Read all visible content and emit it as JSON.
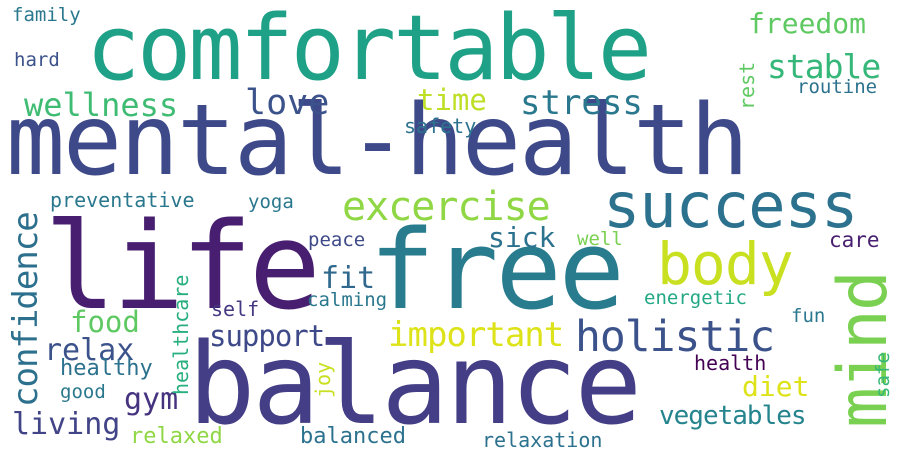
{
  "words": [
    {
      "key": "mental_health",
      "text": "mental-health",
      "color": "#3e4989"
    },
    {
      "key": "comfortable",
      "text": "comfortable",
      "color": "#1fa187"
    },
    {
      "key": "balance",
      "text": "balance",
      "color": "#433e85"
    },
    {
      "key": "life",
      "text": "life",
      "color": "#481f70"
    },
    {
      "key": "free",
      "text": "free",
      "color": "#287c8e"
    },
    {
      "key": "success",
      "text": "success",
      "color": "#2c728e"
    },
    {
      "key": "body",
      "text": "body",
      "color": "#c8e020"
    },
    {
      "key": "mind",
      "text": "mind",
      "color": "#7ad151"
    },
    {
      "key": "holistic",
      "text": "holistic",
      "color": "#3b528b"
    },
    {
      "key": "excercise",
      "text": "excercise",
      "color": "#8fd744"
    },
    {
      "key": "confidence",
      "text": "confidence",
      "color": "#2d708e"
    },
    {
      "key": "wellness",
      "text": "wellness",
      "color": "#3fbc73"
    },
    {
      "key": "stress",
      "text": "stress",
      "color": "#2a788e"
    },
    {
      "key": "love",
      "text": "love",
      "color": "#3b528b"
    },
    {
      "key": "important",
      "text": "important",
      "color": "#dde318"
    },
    {
      "key": "stable",
      "text": "stable",
      "color": "#35b779"
    },
    {
      "key": "freedom",
      "text": "freedom",
      "color": "#5ec962"
    },
    {
      "key": "vegetables",
      "text": "vegetables",
      "color": "#25848e"
    },
    {
      "key": "living",
      "text": "living",
      "color": "#414487"
    },
    {
      "key": "relax",
      "text": "relax",
      "color": "#3b528b"
    },
    {
      "key": "food",
      "text": "food",
      "color": "#5ec962"
    },
    {
      "key": "support",
      "text": "support",
      "color": "#3e4989"
    },
    {
      "key": "diet",
      "text": "diet",
      "color": "#dde318"
    },
    {
      "key": "gym",
      "text": "gym",
      "color": "#46337f"
    },
    {
      "key": "sick",
      "text": "sick",
      "color": "#2c728e"
    },
    {
      "key": "fit",
      "text": "fit",
      "color": "#31688e"
    },
    {
      "key": "time",
      "text": "time",
      "color": "#bddf26"
    },
    {
      "key": "healthy",
      "text": "healthy",
      "color": "#2c728e"
    },
    {
      "key": "balanced",
      "text": "balanced",
      "color": "#2c728e"
    },
    {
      "key": "relaxed",
      "text": "relaxed",
      "color": "#8fd744"
    },
    {
      "key": "relaxation",
      "text": "relaxation",
      "color": "#2c728e"
    },
    {
      "key": "preventative",
      "text": "preventative",
      "color": "#2a788e"
    },
    {
      "key": "yoga",
      "text": "yoga",
      "color": "#2a788e"
    },
    {
      "key": "peace",
      "text": "peace",
      "color": "#3e4989"
    },
    {
      "key": "care",
      "text": "care",
      "color": "#481f70"
    },
    {
      "key": "well",
      "text": "well",
      "color": "#7ad151"
    },
    {
      "key": "energetic",
      "text": "energetic",
      "color": "#22a884"
    },
    {
      "key": "self",
      "text": "self",
      "color": "#453882"
    },
    {
      "key": "calming",
      "text": "calming",
      "color": "#2a788e"
    },
    {
      "key": "fun",
      "text": "fun",
      "color": "#2a788e"
    },
    {
      "key": "health",
      "text": "health",
      "color": "#440154"
    },
    {
      "key": "safe",
      "text": "safe",
      "color": "#35b779"
    },
    {
      "key": "good",
      "text": "good",
      "color": "#2a788e"
    },
    {
      "key": "joy",
      "text": "joy",
      "color": "#c8e020"
    },
    {
      "key": "healthcare",
      "text": "healthcare",
      "color": "#29af7f"
    },
    {
      "key": "family",
      "text": "family",
      "color": "#2a788e"
    },
    {
      "key": "hard",
      "text": "hard",
      "color": "#3b528b"
    },
    {
      "key": "routine",
      "text": "routine",
      "color": "#2c728e"
    },
    {
      "key": "rest",
      "text": "rest",
      "color": "#5ec962"
    },
    {
      "key": "safety",
      "text": "safety",
      "color": "#2c728e"
    }
  ]
}
